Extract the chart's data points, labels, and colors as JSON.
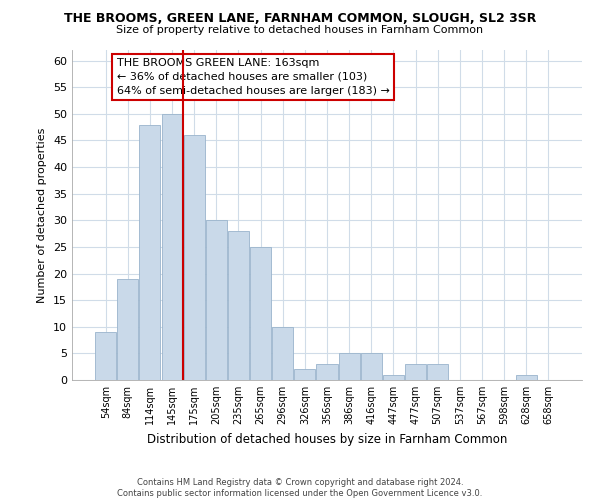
{
  "title": "THE BROOMS, GREEN LANE, FARNHAM COMMON, SLOUGH, SL2 3SR",
  "subtitle": "Size of property relative to detached houses in Farnham Common",
  "xlabel": "Distribution of detached houses by size in Farnham Common",
  "ylabel": "Number of detached properties",
  "bar_labels": [
    "54sqm",
    "84sqm",
    "114sqm",
    "145sqm",
    "175sqm",
    "205sqm",
    "235sqm",
    "265sqm",
    "296sqm",
    "326sqm",
    "356sqm",
    "386sqm",
    "416sqm",
    "447sqm",
    "477sqm",
    "507sqm",
    "537sqm",
    "567sqm",
    "598sqm",
    "628sqm",
    "658sqm"
  ],
  "bar_values": [
    9,
    19,
    48,
    50,
    46,
    30,
    28,
    25,
    10,
    2,
    3,
    5,
    5,
    1,
    3,
    3,
    0,
    0,
    0,
    1,
    0
  ],
  "bar_color": "#c9d9e9",
  "bar_edge_color": "#9ab4cc",
  "vline_color": "#cc0000",
  "vline_index": 3.5,
  "ylim": [
    0,
    62
  ],
  "yticks": [
    0,
    5,
    10,
    15,
    20,
    25,
    30,
    35,
    40,
    45,
    50,
    55,
    60
  ],
  "annotation_line1": "THE BROOMS GREEN LANE: 163sqm",
  "annotation_line2": "← 36% of detached houses are smaller (103)",
  "annotation_line3": "64% of semi-detached houses are larger (183) →",
  "footer_text": "Contains HM Land Registry data © Crown copyright and database right 2024.\nContains public sector information licensed under the Open Government Licence v3.0.",
  "background_color": "#ffffff",
  "grid_color": "#d0dce8"
}
